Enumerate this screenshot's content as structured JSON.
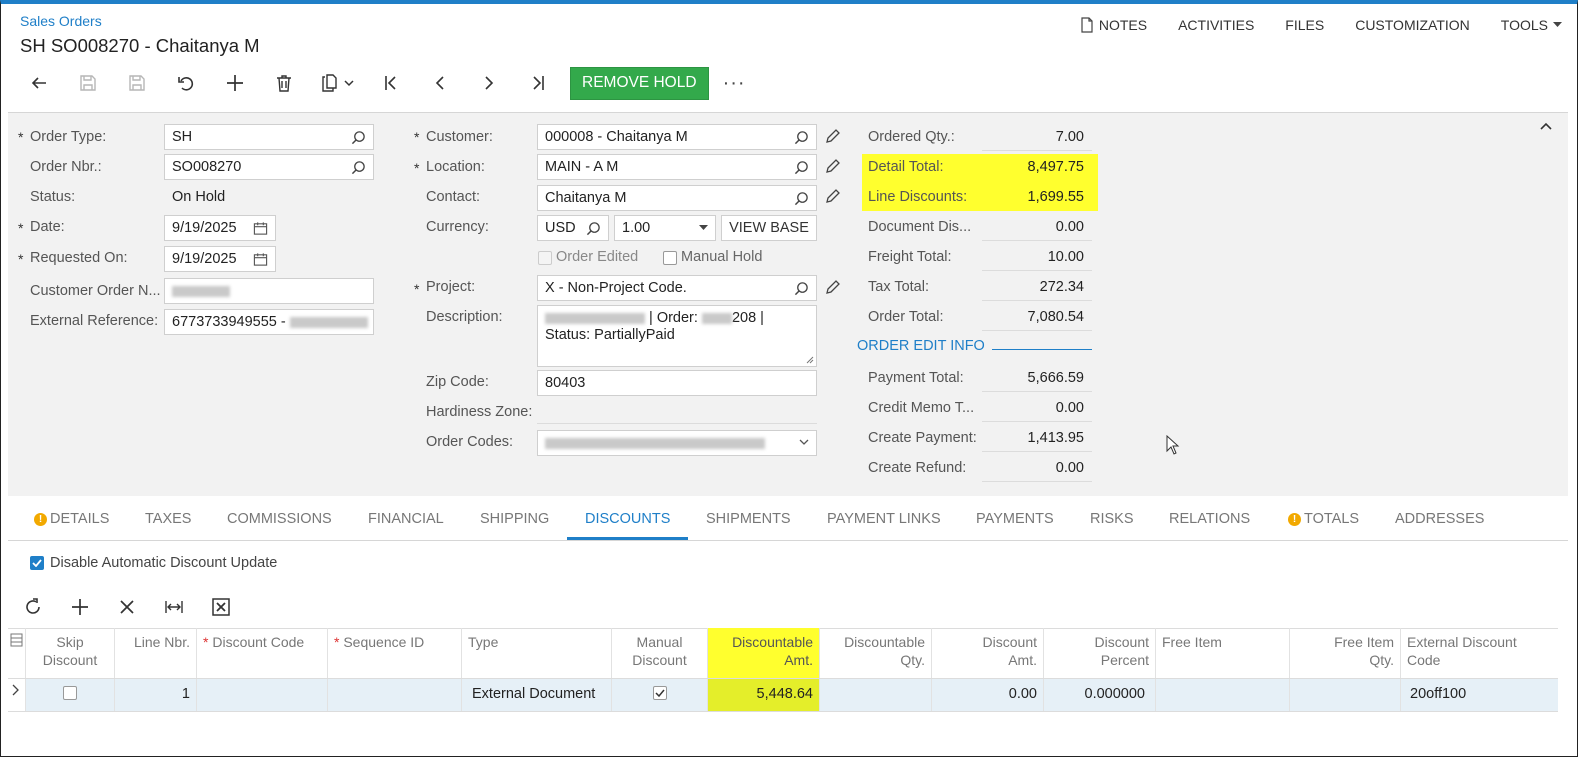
{
  "header": {
    "breadcrumb": "Sales Orders",
    "title": "SH SO008270 - Chaitanya M",
    "links": {
      "notes": "NOTES",
      "activities": "ACTIVITIES",
      "files": "FILES",
      "customization": "CUSTOMIZATION",
      "tools": "TOOLS"
    }
  },
  "toolbar": {
    "remove_hold": "REMOVE HOLD",
    "more": "···"
  },
  "summary": {
    "order_type_label": "Order Type:",
    "order_type": "SH",
    "order_nbr_label": "Order Nbr.:",
    "order_nbr": "SO008270",
    "status_label": "Status:",
    "status": "On Hold",
    "date_label": "Date:",
    "date": "9/19/2025",
    "requested_on_label": "Requested On:",
    "requested_on": "9/19/2025",
    "customer_order_label": "Customer Order N...",
    "external_ref_label": "External Reference:",
    "external_ref": "6773733949555 -",
    "customer_label": "Customer:",
    "customer": "000008 - Chaitanya M",
    "location_label": "Location:",
    "location": "MAIN - A M",
    "contact_label": "Contact:",
    "contact": "Chaitanya M",
    "currency_label": "Currency:",
    "currency": "USD",
    "rate": "1.00",
    "view_base": "VIEW BASE",
    "order_edited_label": "Order Edited",
    "manual_hold_label": "Manual Hold",
    "project_label": "Project:",
    "project": "X - Non-Project Code.",
    "description_label": "Description:",
    "description_line1_mid": "| Order:",
    "description_line1_end": "208 |",
    "description_line2": "Status: PartiallyPaid",
    "zip_label": "Zip Code:",
    "zip": "80403",
    "hardiness_label": "Hardiness Zone:",
    "order_codes_label": "Order Codes:"
  },
  "totals": {
    "ordered_qty_label": "Ordered Qty.:",
    "ordered_qty": "7.00",
    "detail_total_label": "Detail Total:",
    "detail_total": "8,497.75",
    "line_discounts_label": "Line Discounts:",
    "line_discounts": "1,699.55",
    "doc_dis_label": "Document Dis...",
    "doc_dis": "0.00",
    "freight_label": "Freight Total:",
    "freight": "10.00",
    "tax_label": "Tax Total:",
    "tax": "272.34",
    "order_total_label": "Order Total:",
    "order_total": "7,080.54",
    "order_edit_info": "ORDER EDIT INFO",
    "payment_total_label": "Payment Total:",
    "payment_total": "5,666.59",
    "credit_memo_label": "Credit Memo T...",
    "credit_memo": "0.00",
    "create_payment_label": "Create Payment:",
    "create_payment": "1,413.95",
    "create_refund_label": "Create Refund:",
    "create_refund": "0.00",
    "highlight_color": "#ffff2e"
  },
  "tabs": [
    "DETAILS",
    "TAXES",
    "COMMISSIONS",
    "FINANCIAL",
    "SHIPPING",
    "DISCOUNTS",
    "SHIPMENTS",
    "PAYMENT LINKS",
    "PAYMENTS",
    "RISKS",
    "RELATIONS",
    "TOTALS",
    "ADDRESSES"
  ],
  "discounts": {
    "disable_auto_label": "Disable Automatic Discount Update",
    "columns": {
      "skip": "Skip Discount",
      "line": "Line Nbr.",
      "code": "Discount Code",
      "seq": "Sequence ID",
      "type": "Type",
      "manual": "Manual Discount",
      "disc_amt": "Discountable Amt.",
      "disc_qty": "Discountable Qty.",
      "amt": "Discount Amt.",
      "pct": "Discount Percent",
      "free_item": "Free Item",
      "free_qty": "Free Item Qty.",
      "ext_code": "External Discount Code"
    },
    "row": {
      "line": "1",
      "type": "External Document",
      "disc_amt": "5,448.64",
      "amt": "0.00",
      "pct": "0.000000",
      "ext_code": "20off100"
    }
  },
  "colors": {
    "accent": "#1f7fc8",
    "button_green": "#33a94b",
    "highlight": "#ffff2e",
    "amt_highlight": "#e4ee2a"
  }
}
